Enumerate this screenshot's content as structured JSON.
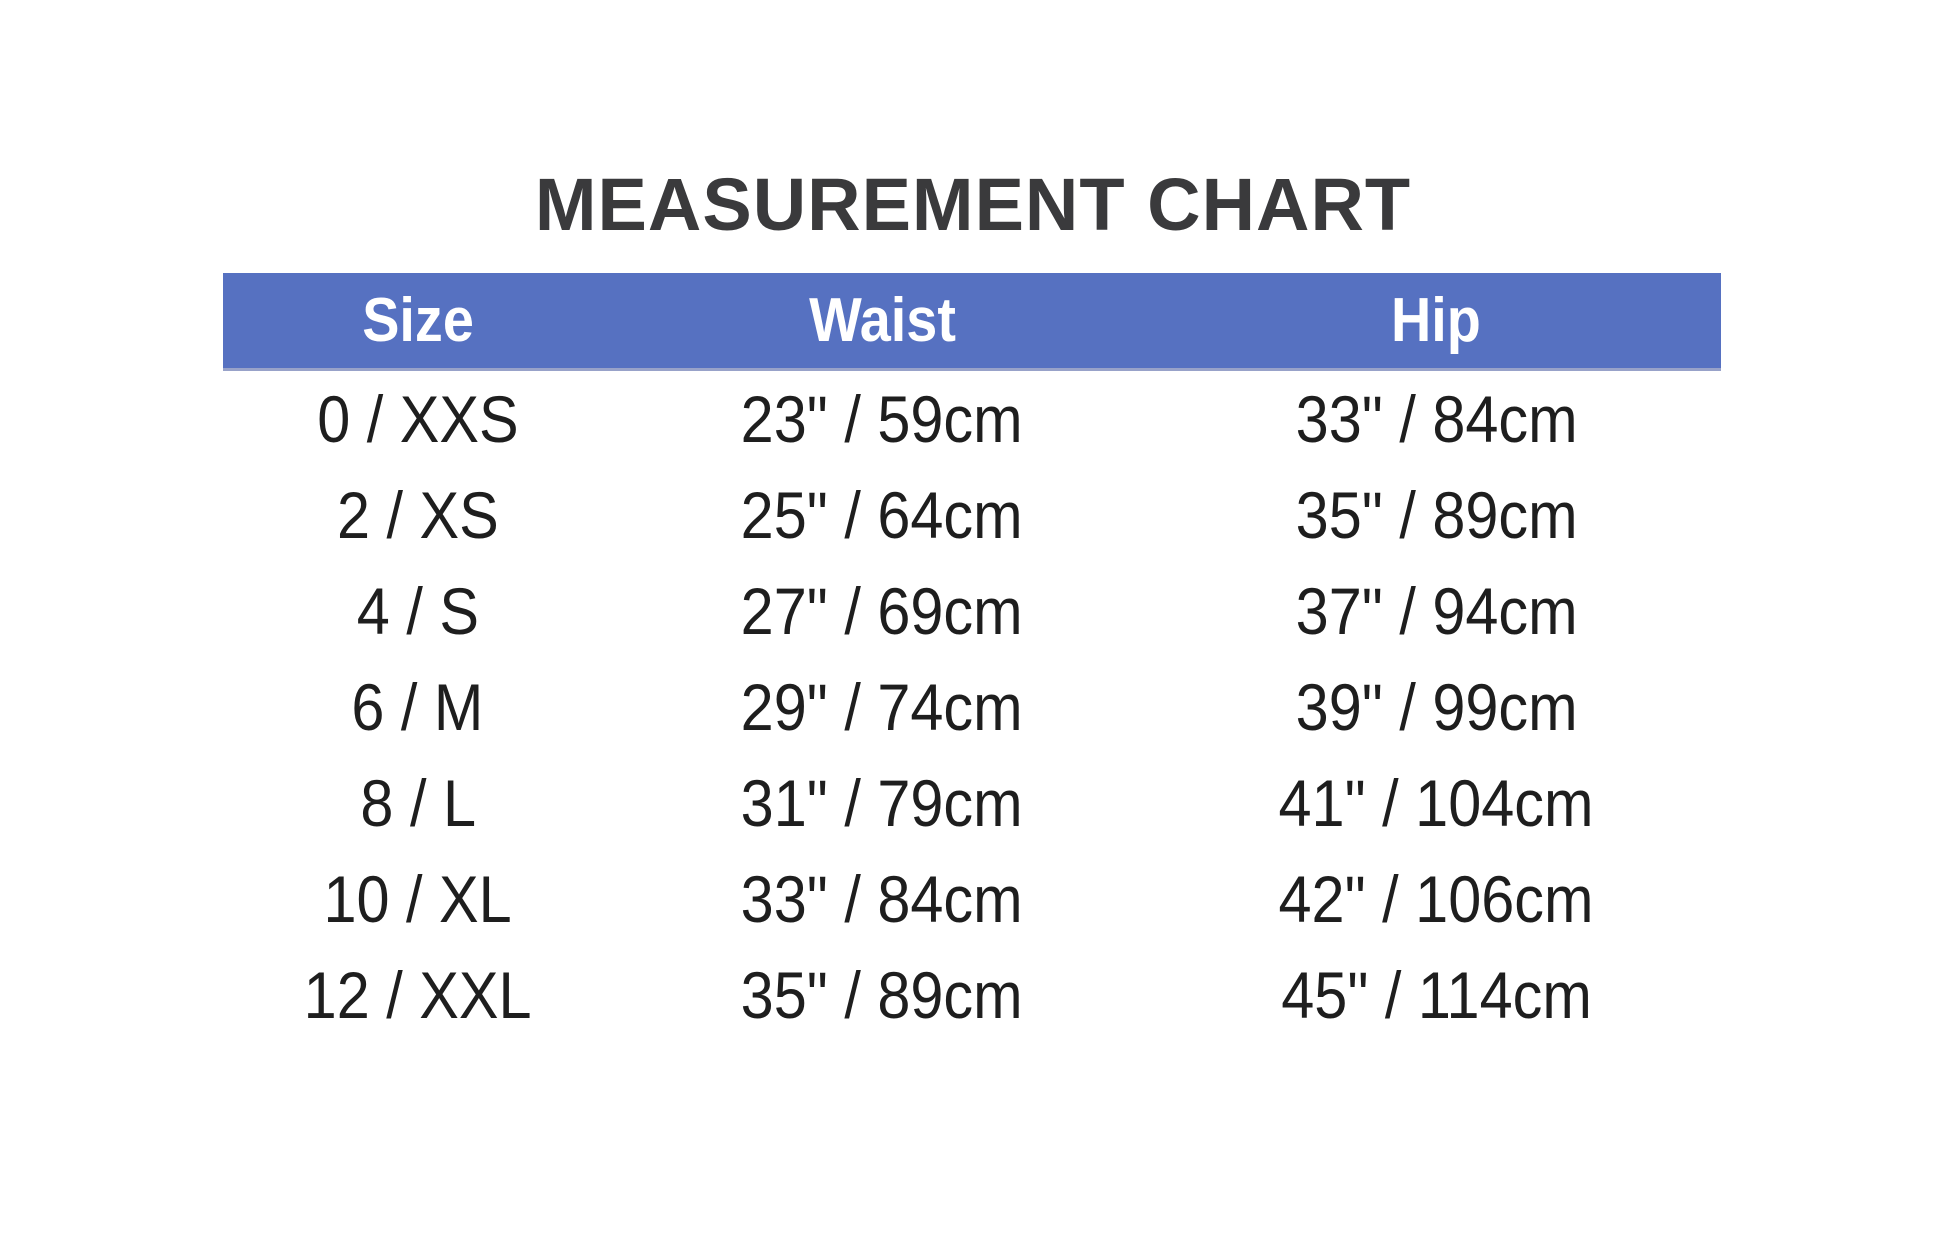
{
  "title": {
    "text": "MEASUREMENT CHART",
    "color": "#3a3a3c"
  },
  "colors": {
    "page_bg": "#ffffff",
    "header_bg": "#5671c1",
    "header_edge": "#98a2c9",
    "header_text": "#ffffff",
    "title_text": "#3a3a3c",
    "body_text": "#1e1e1e"
  },
  "chart_data": {
    "type": "table",
    "title": "MEASUREMENT CHART",
    "columns": [
      "Size",
      "Waist",
      "Hip"
    ],
    "rows": [
      [
        "0 / XXS",
        "23\" / 59cm",
        "33\" / 84cm"
      ],
      [
        "2 / XS",
        "25\" / 64cm",
        "35\" / 89cm"
      ],
      [
        "4 / S",
        "27\" / 69cm",
        "37\" / 94cm"
      ],
      [
        "6 / M",
        "29\" / 74cm",
        "39\" / 99cm"
      ],
      [
        "8 / L",
        "31\" / 79cm",
        "41\" / 104cm"
      ],
      [
        "10 / XL",
        "33\" / 84cm",
        "42\" / 106cm"
      ],
      [
        "12 / XXL",
        "35\" / 89cm",
        "45\" / 114cm"
      ]
    ],
    "header_position": "top",
    "grid": false,
    "legend_position": "none"
  }
}
